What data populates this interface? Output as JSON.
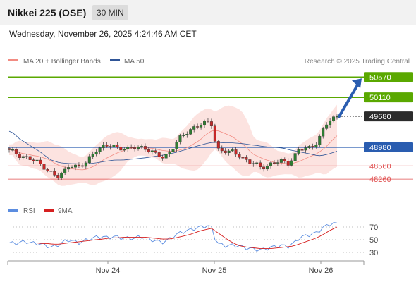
{
  "header": {
    "title": "Nikkei 225 (OSE)",
    "timeframe": "30 MIN",
    "datetime": "Wednesday, November 26, 2025 4:24:46 AM CET"
  },
  "legend": {
    "ma20_label": "MA 20 + Bollinger Bands",
    "ma20_color": "#f28b82",
    "ma50_label": "MA 50",
    "ma50_color": "#2f5597",
    "research": "Research © 2025 Trading Central"
  },
  "levels": [
    {
      "value": 50570,
      "label": "50570",
      "type": "resistance",
      "color": "#5aa800"
    },
    {
      "value": 50110,
      "label": "50110",
      "type": "resistance",
      "color": "#5aa800"
    },
    {
      "value": 49680,
      "label": "49680",
      "type": "last_price",
      "color": "#2b2b2b"
    },
    {
      "value": 48980,
      "label": "48980",
      "type": "pivot",
      "color": "#2a5db0"
    },
    {
      "value": 48560,
      "label": "48560",
      "type": "support",
      "color": "#e05050"
    },
    {
      "value": 48260,
      "label": "48260",
      "type": "support",
      "color": "#e05050"
    }
  ],
  "x_axis": {
    "labels": [
      "Nov 24",
      "Nov 25",
      "Nov 26"
    ]
  },
  "rsi_panel": {
    "rsi_label": "RSI",
    "rsi_color": "#5b8de0",
    "ma9_label": "9MA",
    "ma9_color": "#d62020",
    "levels": [
      "70",
      "50",
      "30"
    ]
  },
  "chart_data": {
    "type": "candlestick",
    "title": "Nikkei 225 (OSE)",
    "interval": "30 MIN",
    "y_unit": "index points",
    "ylim": [
      48200,
      50600
    ],
    "price_path": [
      48900,
      48860,
      48800,
      48760,
      48700,
      48650,
      48580,
      48480,
      48360,
      48300,
      48420,
      48600,
      48560,
      48520,
      48620,
      48800,
      48940,
      48980,
      49000,
      49020,
      48980,
      48960,
      48920,
      48980,
      49000,
      48960,
      48880,
      48790,
      48760,
      48840,
      48980,
      49150,
      49260,
      49380,
      49450,
      49480,
      49540,
      49520,
      48960,
      48900,
      48860,
      48880,
      48820,
      48720,
      48620,
      48600,
      48540,
      48560,
      48600,
      48640,
      48680,
      48620,
      48760,
      48900,
      48950,
      48980,
      49060,
      49250,
      49480,
      49630,
      49680
    ],
    "pivot": 48980,
    "resistances": [
      50110,
      50570
    ],
    "supports": [
      48560,
      48260
    ],
    "last": 49680,
    "projected_target": 50570,
    "x_labels": [
      "Nov 24",
      "Nov 25",
      "Nov 26"
    ],
    "rsi": {
      "levels": [
        70,
        50,
        30
      ],
      "rsi_path": [
        45,
        44,
        46,
        47,
        45,
        44,
        43,
        40,
        38,
        42,
        47,
        50,
        47,
        45,
        49,
        52,
        54,
        55,
        53,
        55,
        54,
        52,
        53,
        52,
        56,
        52,
        50,
        48,
        46,
        49,
        55,
        60,
        63,
        65,
        68,
        70,
        72,
        70,
        44,
        42,
        40,
        42,
        40,
        38,
        36,
        35,
        34,
        36,
        38,
        40,
        41,
        39,
        44,
        52,
        56,
        58,
        60,
        66,
        72,
        76,
        75
      ],
      "ma9_path": [
        45,
        45,
        45,
        45,
        45,
        45,
        44,
        44,
        43,
        43,
        44,
        45,
        46,
        47,
        48,
        49,
        50,
        51,
        52,
        53,
        53,
        54,
        54,
        54,
        54,
        54,
        53,
        52,
        51,
        51,
        52,
        54,
        56,
        58,
        61,
        64,
        66,
        68,
        62,
        56,
        50,
        45,
        41,
        39,
        38,
        37,
        36,
        36,
        36,
        37,
        38,
        39,
        40,
        43,
        46,
        49,
        52,
        56,
        61,
        66,
        70
      ]
    }
  }
}
